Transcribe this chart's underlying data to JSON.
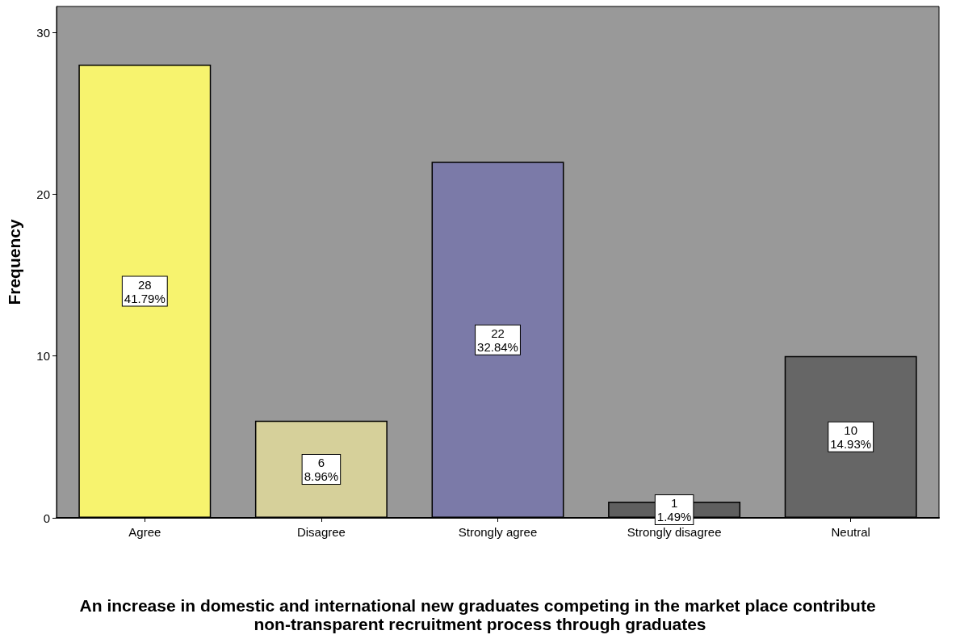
{
  "chart_data": {
    "type": "bar",
    "xlabel": "An increase in domestic and international new graduates competing in the market place contribute non-transparent recruitment process through graduates",
    "ylabel": "Frequency",
    "categories": [
      "Agree",
      "Disagree",
      "Strongly agree",
      "Strongly disagree",
      "Neutral"
    ],
    "values": [
      28,
      6,
      22,
      1,
      10
    ],
    "colors": [
      "#f7f36e",
      "#d6d09a",
      "#7b7aa8",
      "#5f5f5f",
      "#666666"
    ],
    "value_labels": [
      "28\n41.79%",
      "6\n8.96%",
      "22\n32.84%",
      "1\n1.49%",
      "10\n14.93%"
    ],
    "ylim": [
      0,
      31.6
    ],
    "yticks": [
      0,
      10,
      20,
      30
    ],
    "grid": false
  }
}
